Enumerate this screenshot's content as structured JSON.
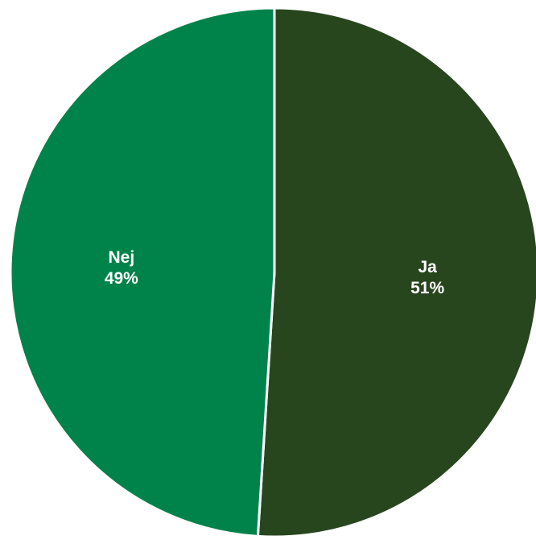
{
  "chart_data": {
    "type": "pie",
    "title": "",
    "slices": [
      {
        "label": "Ja",
        "value": 51,
        "value_label": "51%",
        "color": "#28461e"
      },
      {
        "label": "Nej",
        "value": 49,
        "value_label": "49%",
        "color": "#00834a"
      }
    ],
    "start": "top",
    "direction": "clockwise",
    "legend": "none",
    "separator_color": "#ffffff"
  }
}
